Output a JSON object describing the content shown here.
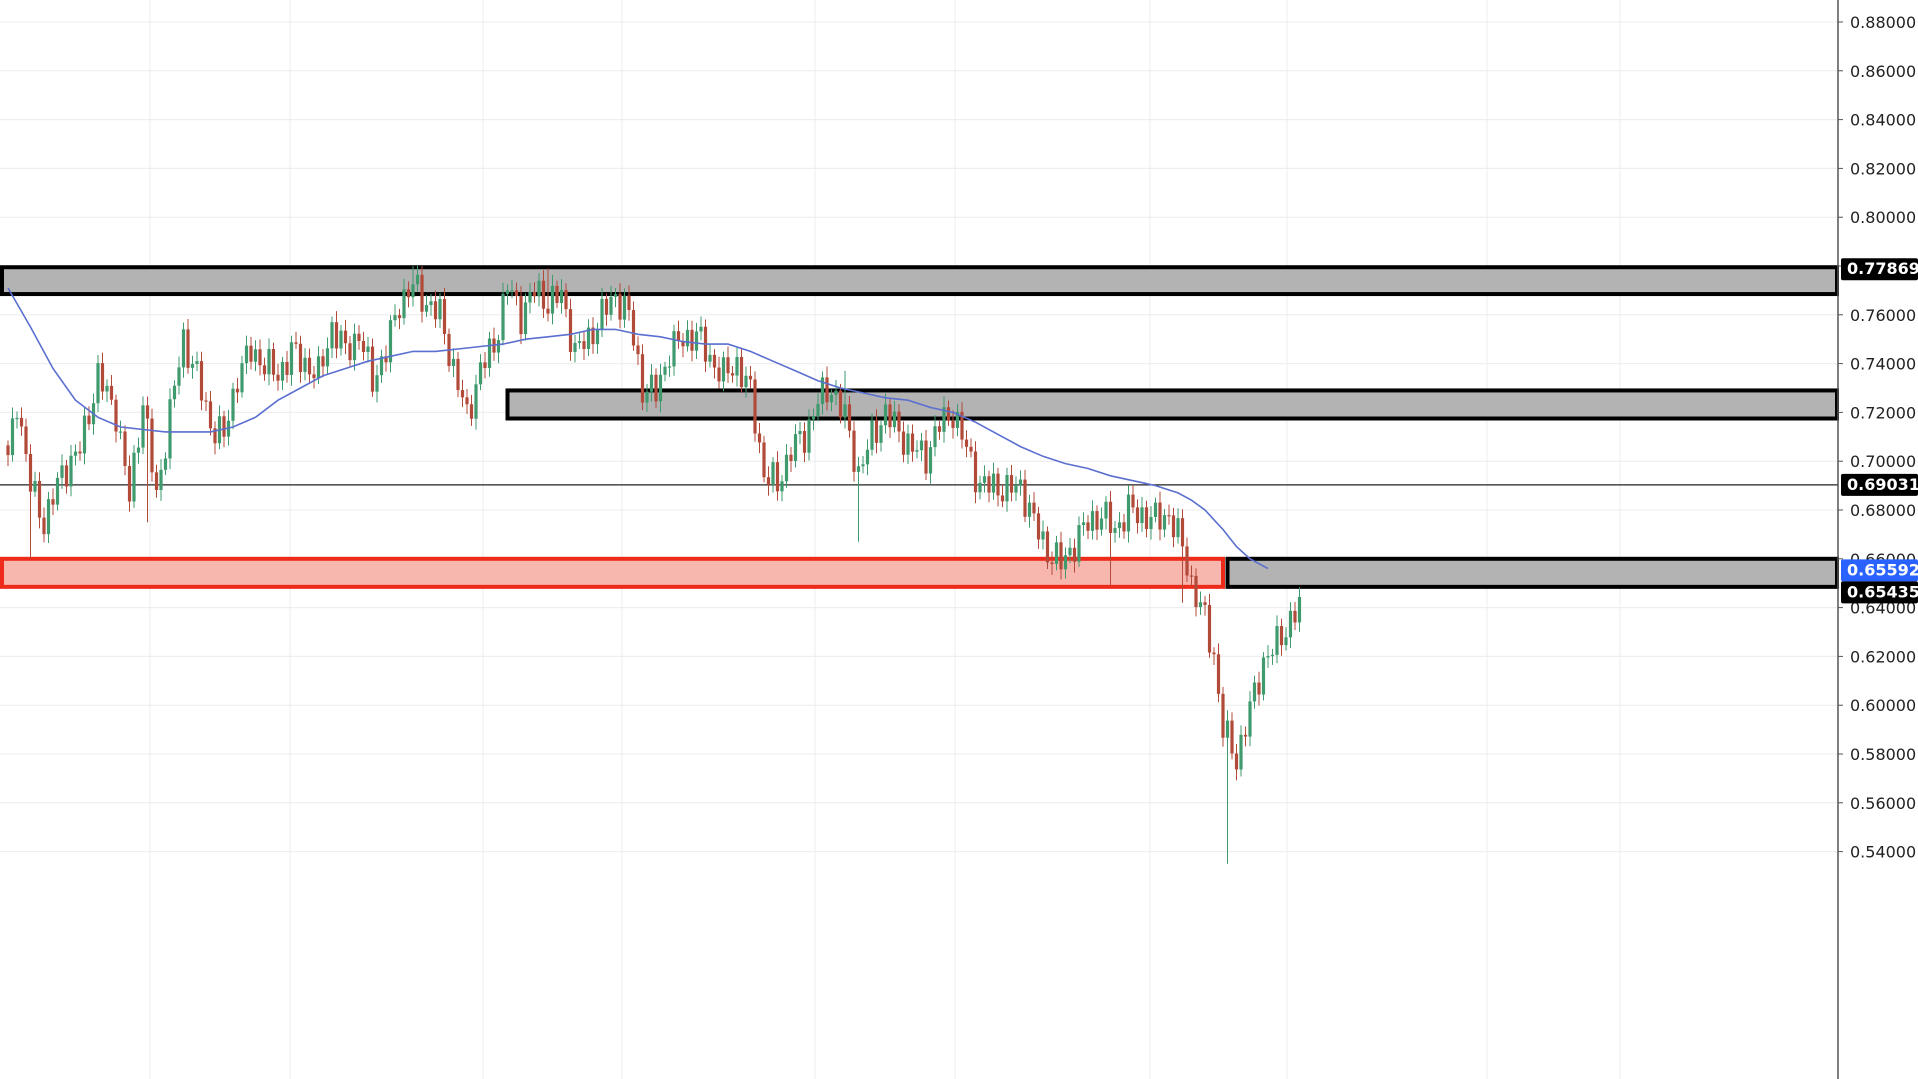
{
  "colors": {
    "background": "#ffffff",
    "grid": "#ececec",
    "up_candle": "#3f9a6e",
    "down_candle": "#b24a3a",
    "moving_average": "#5a6fd0",
    "zone_fill": "#b3b3b3",
    "zone_border": "#000000",
    "highlight_zone_fill": "#f7b6ae",
    "highlight_zone_border": "#ee2a1a",
    "price_tag_dark": "#000000",
    "price_tag_blue": "#2962ff"
  },
  "chart_data": {
    "type": "candlestick",
    "title": "",
    "xlabel": "",
    "ylabel": "",
    "ylim": [
      0.5345,
      0.8875
    ],
    "grid": true,
    "y_ticks": [
      "0.88000",
      "0.86000",
      "0.84000",
      "0.82000",
      "0.80000",
      "0.78000",
      "0.76000",
      "0.74000",
      "0.72000",
      "0.70000",
      "0.68000",
      "0.66000",
      "0.64000",
      "0.62000",
      "0.60000",
      "0.58000",
      "0.56000",
      "0.54000"
    ],
    "key_points": [
      [
        0,
        0.7
      ],
      [
        2,
        0.725
      ],
      [
        5,
        0.69
      ],
      [
        8,
        0.675
      ],
      [
        12,
        0.695
      ],
      [
        16,
        0.705
      ],
      [
        20,
        0.735
      ],
      [
        24,
        0.72
      ],
      [
        27,
        0.685
      ],
      [
        30,
        0.725
      ],
      [
        33,
        0.685
      ],
      [
        36,
        0.72
      ],
      [
        39,
        0.75
      ],
      [
        42,
        0.735
      ],
      [
        45,
        0.715
      ],
      [
        48,
        0.71
      ],
      [
        51,
        0.735
      ],
      [
        54,
        0.745
      ],
      [
        57,
        0.74
      ],
      [
        60,
        0.735
      ],
      [
        63,
        0.745
      ],
      [
        66,
        0.74
      ],
      [
        69,
        0.735
      ],
      [
        72,
        0.755
      ],
      [
        75,
        0.745
      ],
      [
        78,
        0.752
      ],
      [
        81,
        0.733
      ],
      [
        84,
        0.745
      ],
      [
        87,
        0.765
      ],
      [
        90,
        0.772
      ],
      [
        93,
        0.765
      ],
      [
        96,
        0.76
      ],
      [
        99,
        0.738
      ],
      [
        102,
        0.718
      ],
      [
        105,
        0.738
      ],
      [
        108,
        0.747
      ],
      [
        111,
        0.772
      ],
      [
        114,
        0.76
      ],
      [
        117,
        0.77
      ],
      [
        120,
        0.765
      ],
      [
        123,
        0.768
      ],
      [
        126,
        0.745
      ],
      [
        129,
        0.75
      ],
      [
        132,
        0.76
      ],
      [
        135,
        0.768
      ],
      [
        138,
        0.76
      ],
      [
        141,
        0.73
      ],
      [
        144,
        0.728
      ],
      [
        147,
        0.745
      ],
      [
        150,
        0.75
      ],
      [
        153,
        0.752
      ],
      [
        156,
        0.742
      ],
      [
        159,
        0.735
      ],
      [
        162,
        0.74
      ],
      [
        165,
        0.728
      ],
      [
        168,
        0.695
      ],
      [
        171,
        0.69
      ],
      [
        174,
        0.705
      ],
      [
        177,
        0.71
      ],
      [
        180,
        0.725
      ],
      [
        183,
        0.73
      ],
      [
        186,
        0.718
      ],
      [
        189,
        0.695
      ],
      [
        192,
        0.71
      ],
      [
        195,
        0.72
      ],
      [
        198,
        0.712
      ],
      [
        201,
        0.705
      ],
      [
        204,
        0.702
      ],
      [
        207,
        0.715
      ],
      [
        210,
        0.72
      ],
      [
        213,
        0.705
      ],
      [
        216,
        0.69
      ],
      [
        219,
        0.69
      ],
      [
        222,
        0.688
      ],
      [
        225,
        0.69
      ],
      [
        228,
        0.675
      ],
      [
        231,
        0.663
      ],
      [
        234,
        0.658
      ],
      [
        237,
        0.666
      ],
      [
        240,
        0.675
      ],
      [
        243,
        0.678
      ],
      [
        246,
        0.672
      ],
      [
        249,
        0.68
      ],
      [
        252,
        0.678
      ],
      [
        255,
        0.676
      ],
      [
        258,
        0.678
      ],
      [
        261,
        0.665
      ],
      [
        263,
        0.65
      ],
      [
        266,
        0.635
      ],
      [
        268,
        0.62
      ],
      [
        270,
        0.59
      ],
      [
        273,
        0.578
      ],
      [
        276,
        0.598
      ],
      [
        279,
        0.618
      ],
      [
        282,
        0.625
      ],
      [
        285,
        0.635
      ],
      [
        287,
        0.64
      ]
    ],
    "wick_events": [
      {
        "index": 5,
        "low": 0.66
      },
      {
        "index": 31,
        "low": 0.675
      },
      {
        "index": 90,
        "high": 0.78
      },
      {
        "index": 120,
        "high": 0.779
      },
      {
        "index": 189,
        "low": 0.667
      },
      {
        "index": 186,
        "high": 0.737
      },
      {
        "index": 245,
        "low": 0.649
      },
      {
        "index": 271,
        "low": 0.535
      },
      {
        "index": 261,
        "low": 0.642
      }
    ],
    "moving_average": [
      [
        0,
        0.771
      ],
      [
        5,
        0.755
      ],
      [
        10,
        0.738
      ],
      [
        15,
        0.725
      ],
      [
        20,
        0.718
      ],
      [
        25,
        0.714
      ],
      [
        30,
        0.713
      ],
      [
        35,
        0.712
      ],
      [
        40,
        0.712
      ],
      [
        45,
        0.712
      ],
      [
        50,
        0.714
      ],
      [
        55,
        0.718
      ],
      [
        60,
        0.725
      ],
      [
        65,
        0.73
      ],
      [
        70,
        0.735
      ],
      [
        75,
        0.738
      ],
      [
        80,
        0.741
      ],
      [
        85,
        0.743
      ],
      [
        90,
        0.745
      ],
      [
        95,
        0.745
      ],
      [
        100,
        0.746
      ],
      [
        105,
        0.747
      ],
      [
        110,
        0.748
      ],
      [
        115,
        0.75
      ],
      [
        120,
        0.751
      ],
      [
        125,
        0.752
      ],
      [
        130,
        0.754
      ],
      [
        135,
        0.754
      ],
      [
        140,
        0.752
      ],
      [
        145,
        0.751
      ],
      [
        150,
        0.749
      ],
      [
        155,
        0.748
      ],
      [
        160,
        0.748
      ],
      [
        165,
        0.745
      ],
      [
        170,
        0.741
      ],
      [
        175,
        0.737
      ],
      [
        180,
        0.733
      ],
      [
        185,
        0.73
      ],
      [
        190,
        0.728
      ],
      [
        195,
        0.726
      ],
      [
        200,
        0.725
      ],
      [
        205,
        0.722
      ],
      [
        210,
        0.72
      ],
      [
        215,
        0.716
      ],
      [
        220,
        0.711
      ],
      [
        225,
        0.706
      ],
      [
        230,
        0.702
      ],
      [
        235,
        0.699
      ],
      [
        240,
        0.697
      ],
      [
        245,
        0.694
      ],
      [
        250,
        0.692
      ],
      [
        255,
        0.69
      ],
      [
        260,
        0.687
      ],
      [
        263,
        0.684
      ],
      [
        266,
        0.68
      ],
      [
        268,
        0.676
      ],
      [
        270,
        0.672
      ],
      [
        273,
        0.665
      ],
      [
        276,
        0.66
      ],
      [
        280,
        0.656
      ]
    ],
    "zones": [
      {
        "name": "resistance-zone-top",
        "from_index": 0,
        "to_index": 330,
        "top": 0.7795,
        "bottom": 0.7685,
        "style": "gray"
      },
      {
        "name": "resistance-zone-middle",
        "from_index": 111,
        "to_index": 330,
        "top": 0.729,
        "bottom": 0.7175,
        "style": "gray"
      },
      {
        "name": "support-zone-red",
        "from_index": 0,
        "to_index": 270,
        "top": 0.66,
        "bottom": 0.6485,
        "style": "red"
      },
      {
        "name": "resistance-zone-bottom-right",
        "from_index": 271,
        "to_index": 330,
        "top": 0.66,
        "bottom": 0.6485,
        "style": "gray"
      }
    ],
    "horizontal_lines": [
      {
        "name": "level-line-0.69031",
        "value": 0.69031
      }
    ],
    "price_tags": [
      {
        "name": "price-tag-0.77869",
        "label": "0.77869",
        "value": 0.77869,
        "style": "dark"
      },
      {
        "name": "price-tag-0.69031",
        "label": "0.69031",
        "value": 0.69031,
        "style": "dark"
      },
      {
        "name": "price-tag-0.65592",
        "label": "0.65592",
        "value": 0.65592,
        "style": "blue"
      },
      {
        "name": "price-tag-0.65435",
        "label": "0.65435",
        "value": 0.65435,
        "style": "dark"
      }
    ]
  }
}
